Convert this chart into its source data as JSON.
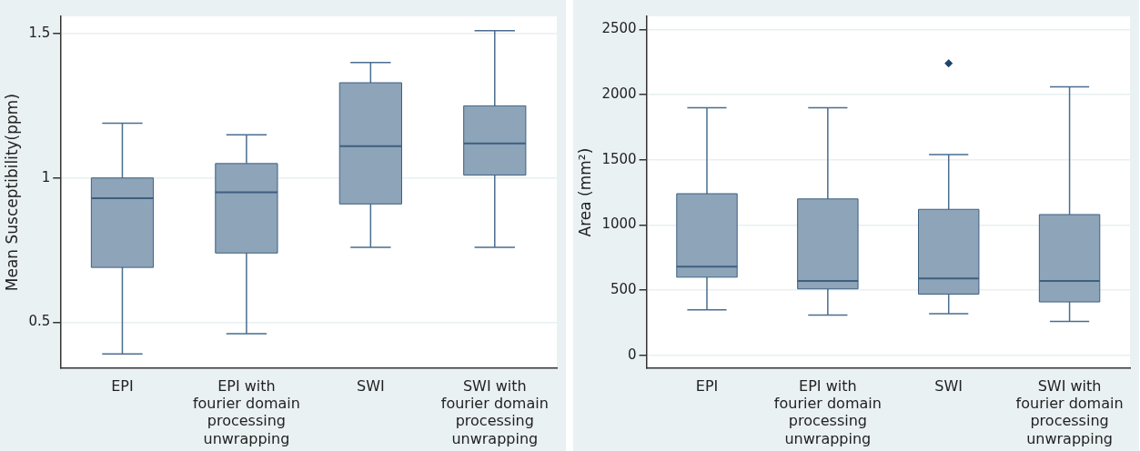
{
  "chart_data": [
    {
      "type": "box",
      "categories": [
        "EPI",
        "EPI with fourier domain processing unwrapping",
        "SWI",
        "SWI with fourier domain processing unwrapping"
      ],
      "ylabel": "Mean Susceptibility(ppm)",
      "ylim": [
        0.34,
        1.56
      ],
      "yticks": [
        0.5,
        1,
        1.5
      ],
      "grid": "y",
      "series": [
        {
          "color": "#8ea4b9",
          "boxes": [
            {
              "low": 0.39,
              "q1": 0.69,
              "median": 0.93,
              "q3": 1.0,
              "high": 1.19
            },
            {
              "low": 0.46,
              "q1": 0.74,
              "median": 0.95,
              "q3": 1.05,
              "high": 1.15
            },
            {
              "low": 0.76,
              "q1": 0.91,
              "median": 1.11,
              "q3": 1.33,
              "high": 1.4
            },
            {
              "low": 0.76,
              "q1": 1.01,
              "median": 1.12,
              "q3": 1.25,
              "high": 1.51
            }
          ]
        }
      ]
    },
    {
      "type": "box",
      "categories": [
        "EPI",
        "EPI with fourier domain processing unwrapping",
        "SWI",
        "SWI with fourier domain processing unwrapping"
      ],
      "ylabel": "Area (mm²)",
      "ylim": [
        -100,
        2600
      ],
      "yticks": [
        0,
        500,
        1000,
        1500,
        2000,
        2500
      ],
      "grid": "y",
      "series": [
        {
          "color": "#8ea4b9",
          "boxes": [
            {
              "low": 350,
              "q1": 600,
              "median": 680,
              "q3": 1240,
              "high": 1900
            },
            {
              "low": 310,
              "q1": 510,
              "median": 570,
              "q3": 1200,
              "high": 1900
            },
            {
              "low": 320,
              "q1": 470,
              "median": 590,
              "q3": 1120,
              "high": 1540,
              "outliers": [
                2240
              ]
            },
            {
              "low": 260,
              "q1": 410,
              "median": 570,
              "q3": 1080,
              "high": 2060
            }
          ]
        }
      ]
    }
  ]
}
